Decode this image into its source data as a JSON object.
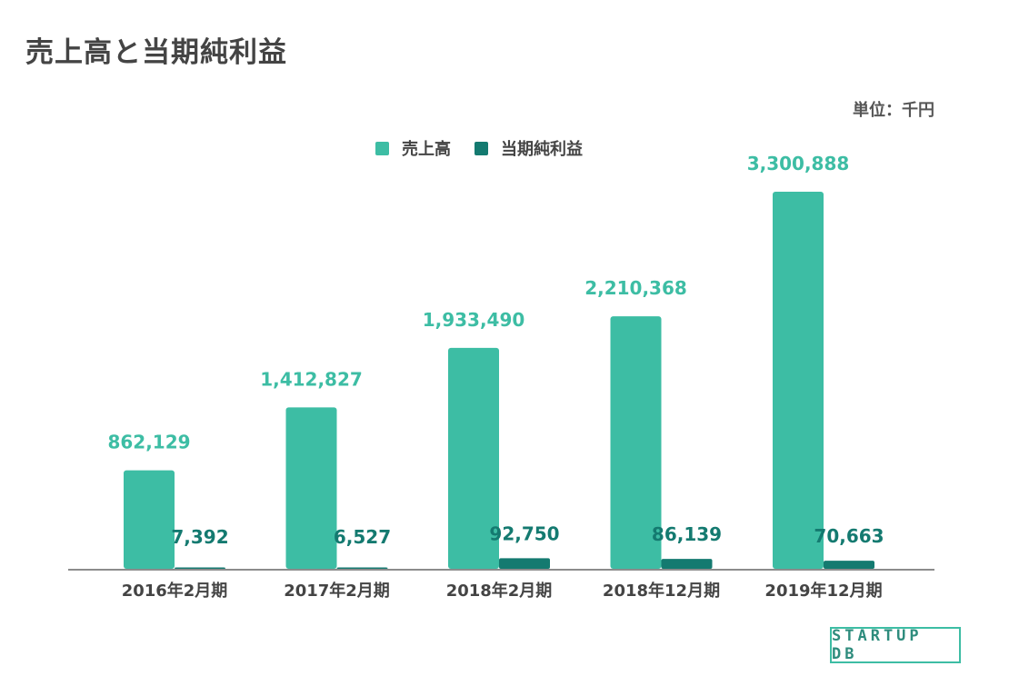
{
  "title": "売上高と当期純利益",
  "unit_label": "単位：千円",
  "colors": {
    "sales": "#3dbda4",
    "net_income": "#147a70",
    "axis": "#666666"
  },
  "logo_text": "STARTUP DB",
  "chart_data": {
    "type": "bar",
    "categories": [
      "2016年2月期",
      "2017年2月期",
      "2018年2月期",
      "2018年12月期",
      "2019年12月期"
    ],
    "series": [
      {
        "name": "売上高",
        "values": [
          862129,
          1412827,
          1933490,
          2210368,
          3300888
        ],
        "labels": [
          "862,129",
          "1,412,827",
          "1,933,490",
          "2,210,368",
          "3,300,888"
        ]
      },
      {
        "name": "当期純利益",
        "values": [
          7392,
          6527,
          92750,
          86139,
          70663
        ],
        "labels": [
          "7,392",
          "6,527",
          "92,750",
          "86,139",
          "70,663"
        ]
      }
    ],
    "ylim": [
      0,
      3300888
    ],
    "legend": "top-center",
    "grid": false
  }
}
